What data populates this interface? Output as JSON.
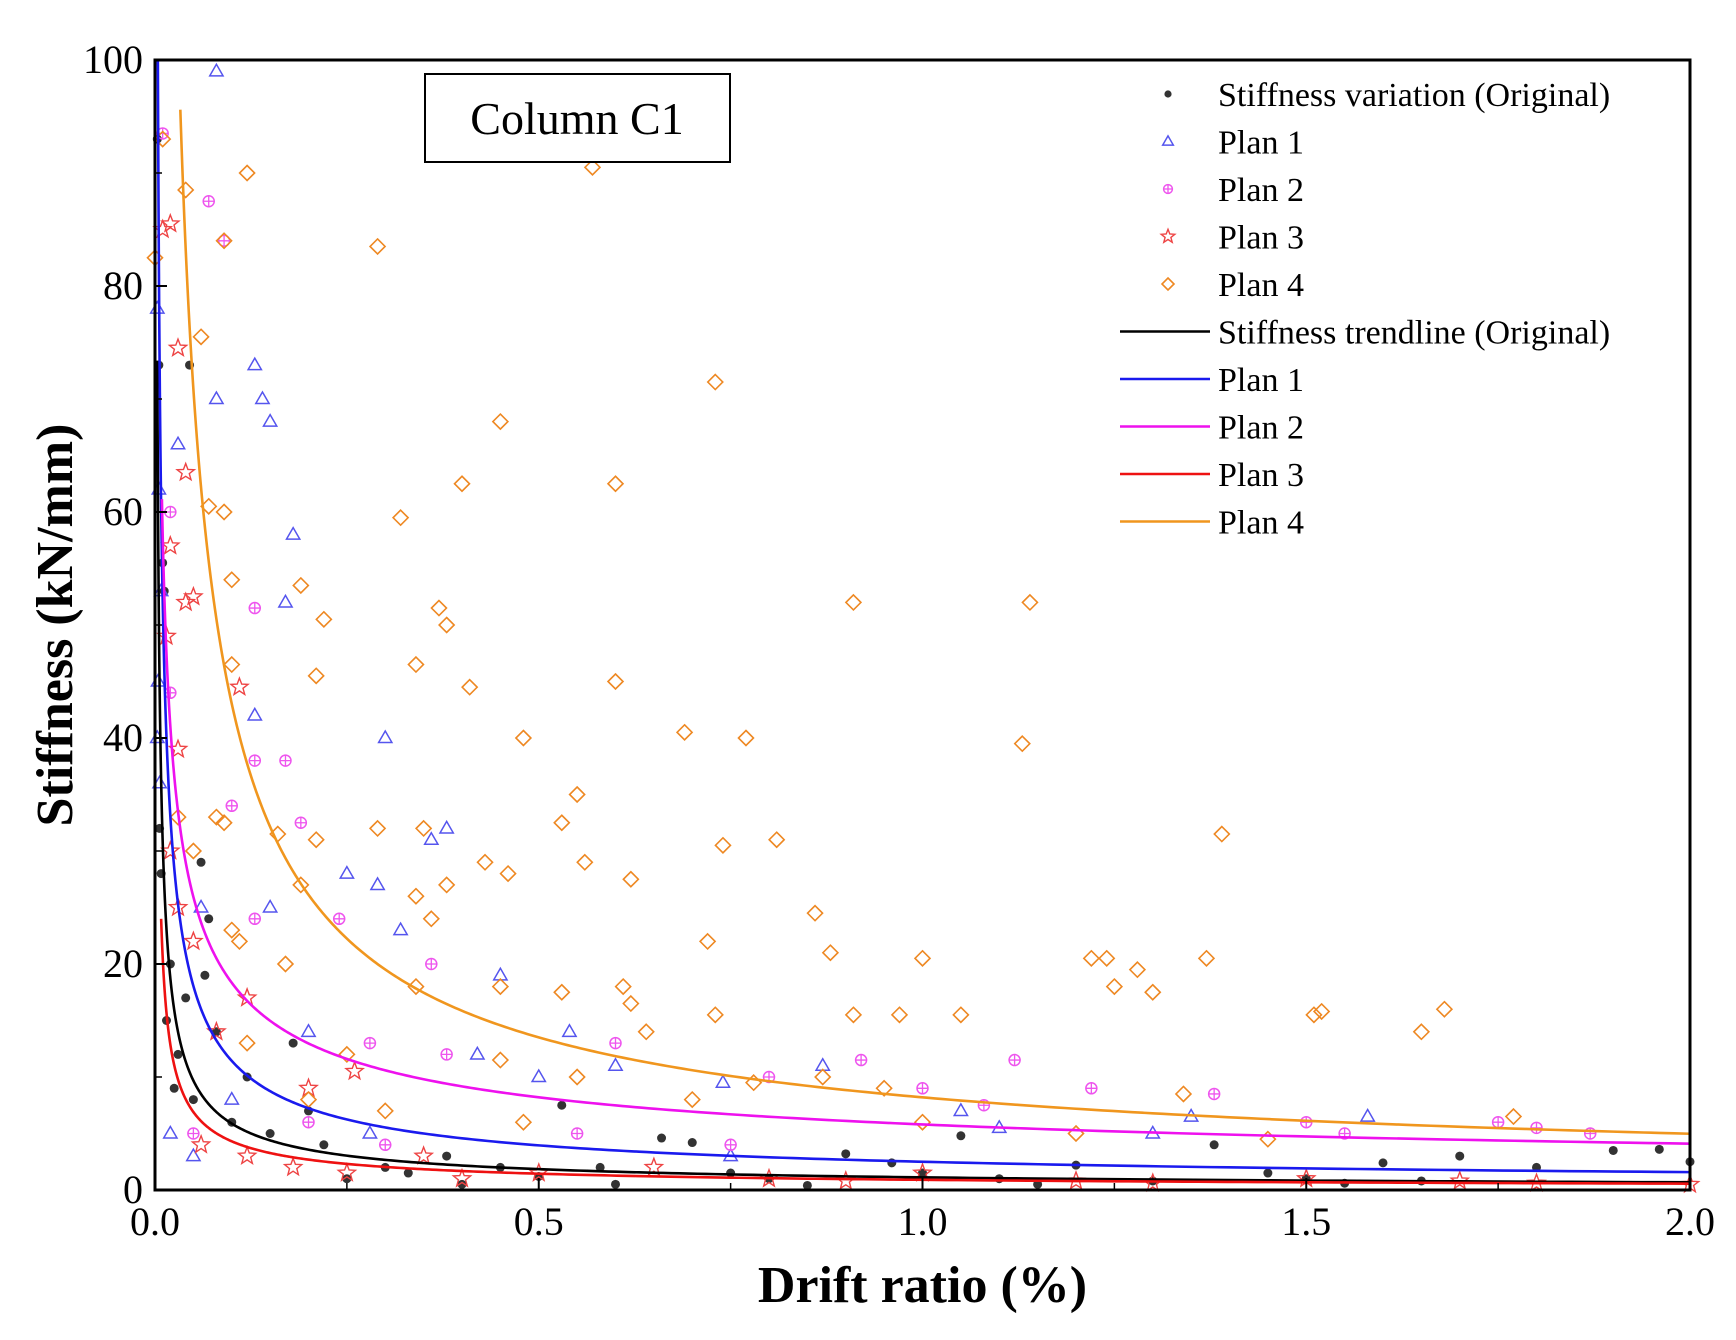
{
  "chart_data": {
    "type": "scatter",
    "title": "",
    "annotation": "Column C1",
    "xlabel": "Drift ratio (%)",
    "ylabel": "Stiffness (kN/mm)",
    "xlim": [
      0.0,
      2.0
    ],
    "ylim": [
      0,
      100
    ],
    "xticks": [
      "0.0",
      "0.5",
      "1.0",
      "1.5",
      "2.0"
    ],
    "yticks": [
      "0",
      "20",
      "40",
      "60",
      "80",
      "100"
    ],
    "legend": [
      {
        "label": "Stiffness variation (Original)",
        "kind": "marker",
        "marker": "dot",
        "color": "#333333"
      },
      {
        "label": "Plan 1",
        "kind": "marker",
        "marker": "triangle",
        "color": "#5555ee"
      },
      {
        "label": "Plan 2",
        "kind": "marker",
        "marker": "circle-plus",
        "color": "#ee55ee"
      },
      {
        "label": "Plan 3",
        "kind": "marker",
        "marker": "star",
        "color": "#ee4444"
      },
      {
        "label": "Plan 4",
        "kind": "marker",
        "marker": "diamond",
        "color": "#ee8822"
      },
      {
        "label": "Stiffness trendline (Original)",
        "kind": "line",
        "color": "#000000"
      },
      {
        "label": "Plan 1",
        "kind": "line",
        "color": "#1a1aee"
      },
      {
        "label": "Plan 2",
        "kind": "line",
        "color": "#ee11ee"
      },
      {
        "label": "Plan 3",
        "kind": "line",
        "color": "#ee1111"
      },
      {
        "label": "Plan 4",
        "kind": "line",
        "color": "#f0961e"
      }
    ],
    "scatter_series": [
      {
        "name": "Stiffness variation (Original)",
        "marker": "dot",
        "color": "#333333",
        "points": [
          [
            0.003,
            93
          ],
          [
            0.005,
            73
          ],
          [
            0.01,
            55.5
          ],
          [
            0.012,
            53
          ],
          [
            0.006,
            32
          ],
          [
            0.008,
            28
          ],
          [
            0.02,
            20
          ],
          [
            0.015,
            15
          ],
          [
            0.03,
            12
          ],
          [
            0.025,
            9
          ],
          [
            0.04,
            17
          ],
          [
            0.045,
            73
          ],
          [
            0.06,
            29
          ],
          [
            0.07,
            24
          ],
          [
            0.065,
            19
          ],
          [
            0.08,
            14
          ],
          [
            0.05,
            8
          ],
          [
            0.1,
            6
          ],
          [
            0.12,
            10
          ],
          [
            0.15,
            5
          ],
          [
            0.18,
            13
          ],
          [
            0.2,
            7
          ],
          [
            0.22,
            4
          ],
          [
            0.3,
            2
          ],
          [
            0.33,
            1.5
          ],
          [
            0.38,
            3
          ],
          [
            0.45,
            2
          ],
          [
            0.5,
            1.2
          ],
          [
            0.53,
            7.5
          ],
          [
            0.58,
            2
          ],
          [
            0.66,
            4.6
          ],
          [
            0.7,
            4.2
          ],
          [
            0.75,
            1.5
          ],
          [
            0.8,
            1
          ],
          [
            0.9,
            3.2
          ],
          [
            0.96,
            2.4
          ],
          [
            1.0,
            1.5
          ],
          [
            1.05,
            4.8
          ],
          [
            1.1,
            1
          ],
          [
            1.2,
            2.2
          ],
          [
            1.3,
            0.8
          ],
          [
            1.38,
            4
          ],
          [
            1.45,
            1.5
          ],
          [
            1.5,
            1
          ],
          [
            1.6,
            2.4
          ],
          [
            1.65,
            0.8
          ],
          [
            1.7,
            3
          ],
          [
            1.8,
            2
          ],
          [
            1.9,
            3.5
          ],
          [
            1.96,
            3.6
          ],
          [
            2.0,
            2.5
          ],
          [
            0.25,
            1
          ],
          [
            0.4,
            0.5
          ],
          [
            0.6,
            0.5
          ],
          [
            0.85,
            0.4
          ],
          [
            1.15,
            0.5
          ],
          [
            1.55,
            0.6
          ]
        ]
      },
      {
        "name": "Plan 1",
        "marker": "triangle",
        "color": "#5555ee",
        "points": [
          [
            0.08,
            99
          ],
          [
            0.003,
            78
          ],
          [
            0.005,
            62
          ],
          [
            0.008,
            53
          ],
          [
            0.004,
            45
          ],
          [
            0.003,
            40
          ],
          [
            0.006,
            36
          ],
          [
            0.03,
            66
          ],
          [
            0.13,
            73
          ],
          [
            0.14,
            70
          ],
          [
            0.15,
            68
          ],
          [
            0.08,
            70
          ],
          [
            0.18,
            58
          ],
          [
            0.17,
            52
          ],
          [
            0.13,
            42
          ],
          [
            0.3,
            40
          ],
          [
            0.38,
            32
          ],
          [
            0.36,
            31
          ],
          [
            0.29,
            27
          ],
          [
            0.25,
            28
          ],
          [
            0.32,
            23
          ],
          [
            0.45,
            19
          ],
          [
            0.15,
            25
          ],
          [
            0.06,
            25
          ],
          [
            0.2,
            14
          ],
          [
            0.42,
            12
          ],
          [
            0.54,
            14
          ],
          [
            0.6,
            11
          ],
          [
            0.74,
            9.5
          ],
          [
            0.87,
            11
          ],
          [
            1.05,
            7
          ],
          [
            1.35,
            6.5
          ],
          [
            1.58,
            6.5
          ],
          [
            1.1,
            5.5
          ],
          [
            0.5,
            10
          ],
          [
            0.02,
            5
          ],
          [
            0.05,
            3
          ],
          [
            0.1,
            8
          ],
          [
            0.28,
            5
          ],
          [
            0.75,
            3
          ],
          [
            1.3,
            5
          ]
        ]
      },
      {
        "name": "Plan 2",
        "marker": "circle-plus",
        "color": "#ee55ee",
        "points": [
          [
            0.01,
            93.5
          ],
          [
            0.07,
            87.5
          ],
          [
            0.09,
            84
          ],
          [
            0.02,
            44
          ],
          [
            0.13,
            51.5
          ],
          [
            0.13,
            38
          ],
          [
            0.17,
            38
          ],
          [
            0.19,
            32.5
          ],
          [
            0.1,
            34
          ],
          [
            0.13,
            24
          ],
          [
            0.24,
            24
          ],
          [
            0.36,
            20
          ],
          [
            0.28,
            13
          ],
          [
            0.38,
            12
          ],
          [
            0.6,
            13
          ],
          [
            0.8,
            10
          ],
          [
            0.92,
            11.5
          ],
          [
            1.0,
            9
          ],
          [
            1.08,
            7.5
          ],
          [
            1.12,
            11.5
          ],
          [
            1.22,
            9
          ],
          [
            1.38,
            8.5
          ],
          [
            1.5,
            6
          ],
          [
            1.75,
            6
          ],
          [
            1.87,
            5
          ],
          [
            0.05,
            5
          ],
          [
            0.3,
            4
          ],
          [
            0.55,
            5
          ],
          [
            0.75,
            4
          ],
          [
            1.55,
            5
          ],
          [
            1.8,
            5.5
          ],
          [
            0.2,
            6
          ],
          [
            0.02,
            60
          ]
        ]
      },
      {
        "name": "Plan 3",
        "marker": "star",
        "color": "#ee4444",
        "points": [
          [
            0.01,
            85
          ],
          [
            0.02,
            85.5
          ],
          [
            0.03,
            74.5
          ],
          [
            0.04,
            63.5
          ],
          [
            0.02,
            57
          ],
          [
            0.015,
            49
          ],
          [
            0.04,
            52
          ],
          [
            0.05,
            52.5
          ],
          [
            0.11,
            44.5
          ],
          [
            0.03,
            39
          ],
          [
            0.12,
            17
          ],
          [
            0.2,
            9
          ],
          [
            0.26,
            10.5
          ],
          [
            0.08,
            14
          ],
          [
            0.02,
            30
          ],
          [
            0.03,
            25
          ],
          [
            0.05,
            22
          ],
          [
            0.06,
            4
          ],
          [
            0.12,
            3
          ],
          [
            0.18,
            2
          ],
          [
            0.25,
            1.5
          ],
          [
            0.35,
            3
          ],
          [
            0.5,
            1.5
          ],
          [
            0.65,
            2
          ],
          [
            0.8,
            1
          ],
          [
            1.0,
            1.5
          ],
          [
            1.2,
            0.8
          ],
          [
            1.5,
            1
          ],
          [
            1.8,
            0.6
          ],
          [
            2.0,
            0.5
          ],
          [
            0.4,
            1
          ],
          [
            0.9,
            0.8
          ],
          [
            1.3,
            0.6
          ],
          [
            1.7,
            0.8
          ]
        ]
      },
      {
        "name": "Plan 4",
        "marker": "diamond",
        "color": "#ee8822",
        "points": [
          [
            0.01,
            93
          ],
          [
            0.04,
            88.5
          ],
          [
            0.12,
            90
          ],
          [
            0.09,
            84
          ],
          [
            0.29,
            83.5
          ],
          [
            0.57,
            90.5
          ],
          [
            0.73,
            71.5
          ],
          [
            0.45,
            68
          ],
          [
            0.0,
            82.5
          ],
          [
            0.06,
            75.5
          ],
          [
            0.4,
            62.5
          ],
          [
            0.6,
            62.5
          ],
          [
            0.09,
            60
          ],
          [
            0.32,
            59.5
          ],
          [
            0.1,
            54
          ],
          [
            0.19,
            53.5
          ],
          [
            0.22,
            50.5
          ],
          [
            0.38,
            50
          ],
          [
            0.37,
            51.5
          ],
          [
            0.91,
            52
          ],
          [
            1.14,
            52
          ],
          [
            0.1,
            46.5
          ],
          [
            0.21,
            45.5
          ],
          [
            0.6,
            45
          ],
          [
            0.41,
            44.5
          ],
          [
            0.34,
            46.5
          ],
          [
            0.69,
            40.5
          ],
          [
            0.77,
            40
          ],
          [
            0.48,
            40
          ],
          [
            1.13,
            39.5
          ],
          [
            0.08,
            33
          ],
          [
            0.09,
            32.5
          ],
          [
            0.29,
            32
          ],
          [
            0.35,
            32
          ],
          [
            0.16,
            31.5
          ],
          [
            0.21,
            31
          ],
          [
            0.53,
            32.5
          ],
          [
            0.62,
            27.5
          ],
          [
            0.55,
            35
          ],
          [
            0.43,
            29
          ],
          [
            0.46,
            28
          ],
          [
            0.56,
            29
          ],
          [
            0.74,
            30.5
          ],
          [
            0.81,
            31
          ],
          [
            1.39,
            31.5
          ],
          [
            0.19,
            27
          ],
          [
            0.34,
            26
          ],
          [
            0.38,
            27
          ],
          [
            0.36,
            24
          ],
          [
            0.72,
            22
          ],
          [
            0.86,
            24.5
          ],
          [
            0.1,
            23
          ],
          [
            0.11,
            22
          ],
          [
            0.88,
            21
          ],
          [
            1.0,
            20.5
          ],
          [
            1.22,
            20.5
          ],
          [
            1.24,
            20.5
          ],
          [
            1.37,
            20.5
          ],
          [
            0.17,
            20
          ],
          [
            0.34,
            18
          ],
          [
            0.45,
            18
          ],
          [
            0.53,
            17.5
          ],
          [
            0.61,
            18
          ],
          [
            0.64,
            14
          ],
          [
            0.73,
            15.5
          ],
          [
            0.91,
            15.5
          ],
          [
            0.97,
            15.5
          ],
          [
            1.05,
            15.5
          ],
          [
            1.28,
            19.5
          ],
          [
            1.3,
            17.5
          ],
          [
            1.25,
            18
          ],
          [
            1.51,
            15.5
          ],
          [
            1.52,
            15.8
          ],
          [
            1.65,
            14
          ],
          [
            1.68,
            16
          ],
          [
            0.12,
            13
          ],
          [
            0.25,
            12
          ],
          [
            0.45,
            11.5
          ],
          [
            0.55,
            10
          ],
          [
            0.62,
            16.5
          ],
          [
            0.78,
            9.5
          ],
          [
            0.87,
            10
          ],
          [
            0.95,
            9
          ],
          [
            1.34,
            8.5
          ],
          [
            1.77,
            6.5
          ],
          [
            0.05,
            30
          ],
          [
            0.03,
            33
          ],
          [
            0.07,
            60.5
          ],
          [
            0.2,
            8
          ],
          [
            0.3,
            7
          ],
          [
            0.48,
            6
          ],
          [
            0.7,
            8
          ],
          [
            1.0,
            6
          ],
          [
            1.2,
            5
          ],
          [
            1.45,
            4.5
          ]
        ]
      }
    ],
    "trendlines": [
      {
        "name": "Stiffness trendline (Original)",
        "color": "#000000",
        "model": "power",
        "a": 1.12,
        "b": -0.72,
        "x_start": 0.003,
        "x_end": 2.0
      },
      {
        "name": "Plan 1",
        "color": "#1a1aee",
        "model": "power",
        "a": 2.5,
        "b": -0.66,
        "x_start": 0.003,
        "x_end": 2.0
      },
      {
        "name": "Plan 2",
        "color": "#ee11ee",
        "model": "power",
        "a": 5.8,
        "b": -0.5,
        "x_start": 0.009,
        "x_end": 2.0
      },
      {
        "name": "Plan 3",
        "color": "#ee1111",
        "model": "power",
        "a": 0.9,
        "b": -0.68,
        "x_start": 0.008,
        "x_end": 2.0
      },
      {
        "name": "Plan 4",
        "color": "#f0961e",
        "model": "power",
        "a": 8.2,
        "b": -0.72,
        "x_start": 0.033,
        "x_end": 2.0
      }
    ]
  }
}
